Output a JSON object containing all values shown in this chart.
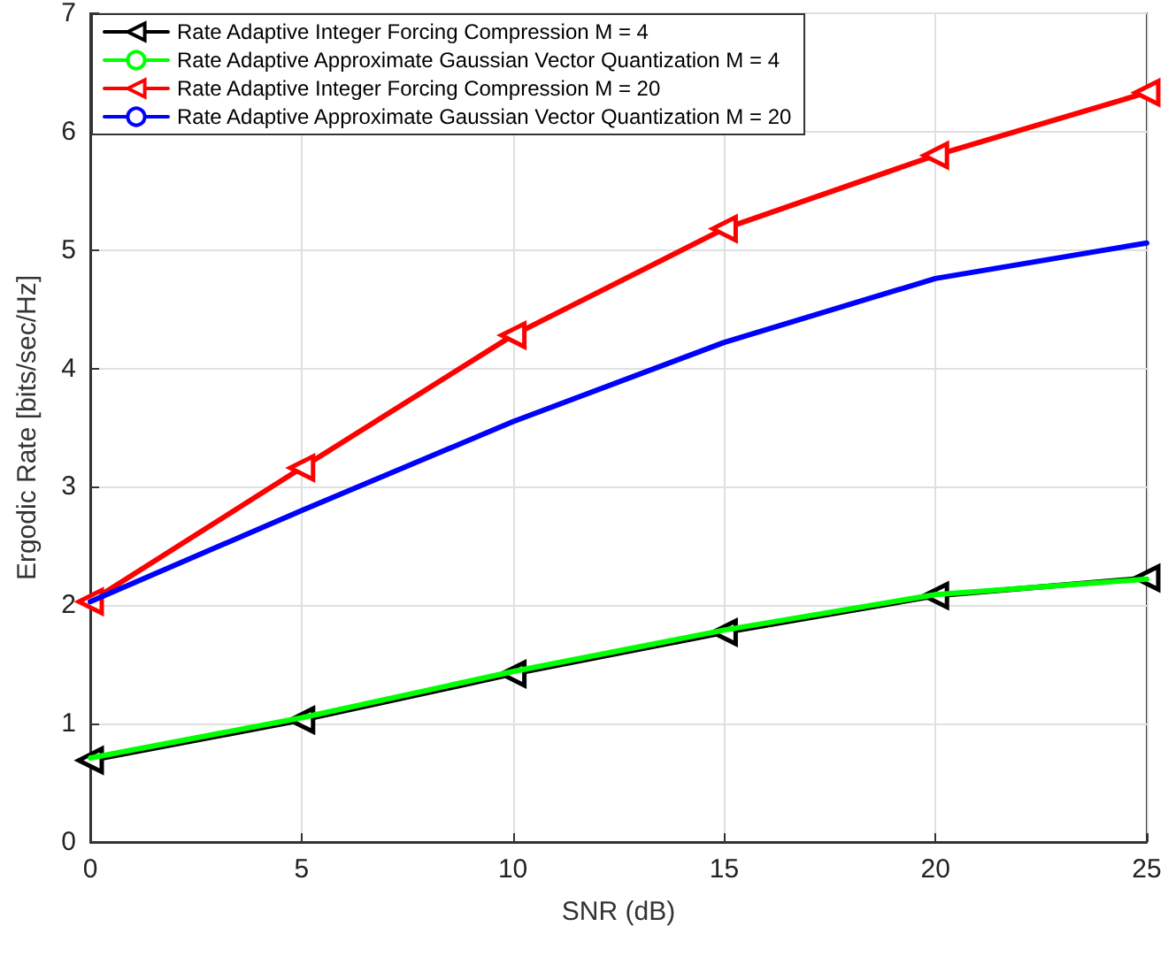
{
  "chart_data": {
    "type": "line",
    "xlabel": "SNR (dB)",
    "ylabel": "Ergodic Rate [bits/sec/Hz]",
    "x": [
      0,
      5,
      10,
      15,
      20,
      25
    ],
    "xlim": [
      0,
      25
    ],
    "xticks": [
      0,
      5,
      10,
      15,
      20,
      25
    ],
    "ylim": [
      0,
      7
    ],
    "yticks": [
      0,
      1,
      2,
      3,
      4,
      5,
      6,
      7
    ],
    "grid": true,
    "legend": "top left",
    "series": [
      {
        "name": "Rate Adaptive Integer Forcing Compression M = 4",
        "color": "#000000",
        "marker": "triangle",
        "values": [
          0.69,
          1.03,
          1.42,
          1.77,
          2.08,
          2.23
        ]
      },
      {
        "name": "Rate Adaptive Approximate Gaussian Vector Quantization M = 4",
        "color": "#00ff00",
        "marker": "none",
        "values": [
          0.71,
          1.05,
          1.44,
          1.79,
          2.09,
          2.22
        ]
      },
      {
        "name": "Rate Adaptive Integer Forcing Compression M = 20",
        "color": "#ff0000",
        "marker": "triangle",
        "values": [
          2.03,
          3.16,
          4.28,
          5.18,
          5.8,
          6.33
        ]
      },
      {
        "name": "Rate Adaptive Approximate Gaussian Vector Quantization M = 20",
        "color": "#0000ff",
        "marker": "none",
        "values": [
          2.03,
          2.8,
          3.55,
          4.22,
          4.76,
          5.06
        ]
      }
    ]
  }
}
